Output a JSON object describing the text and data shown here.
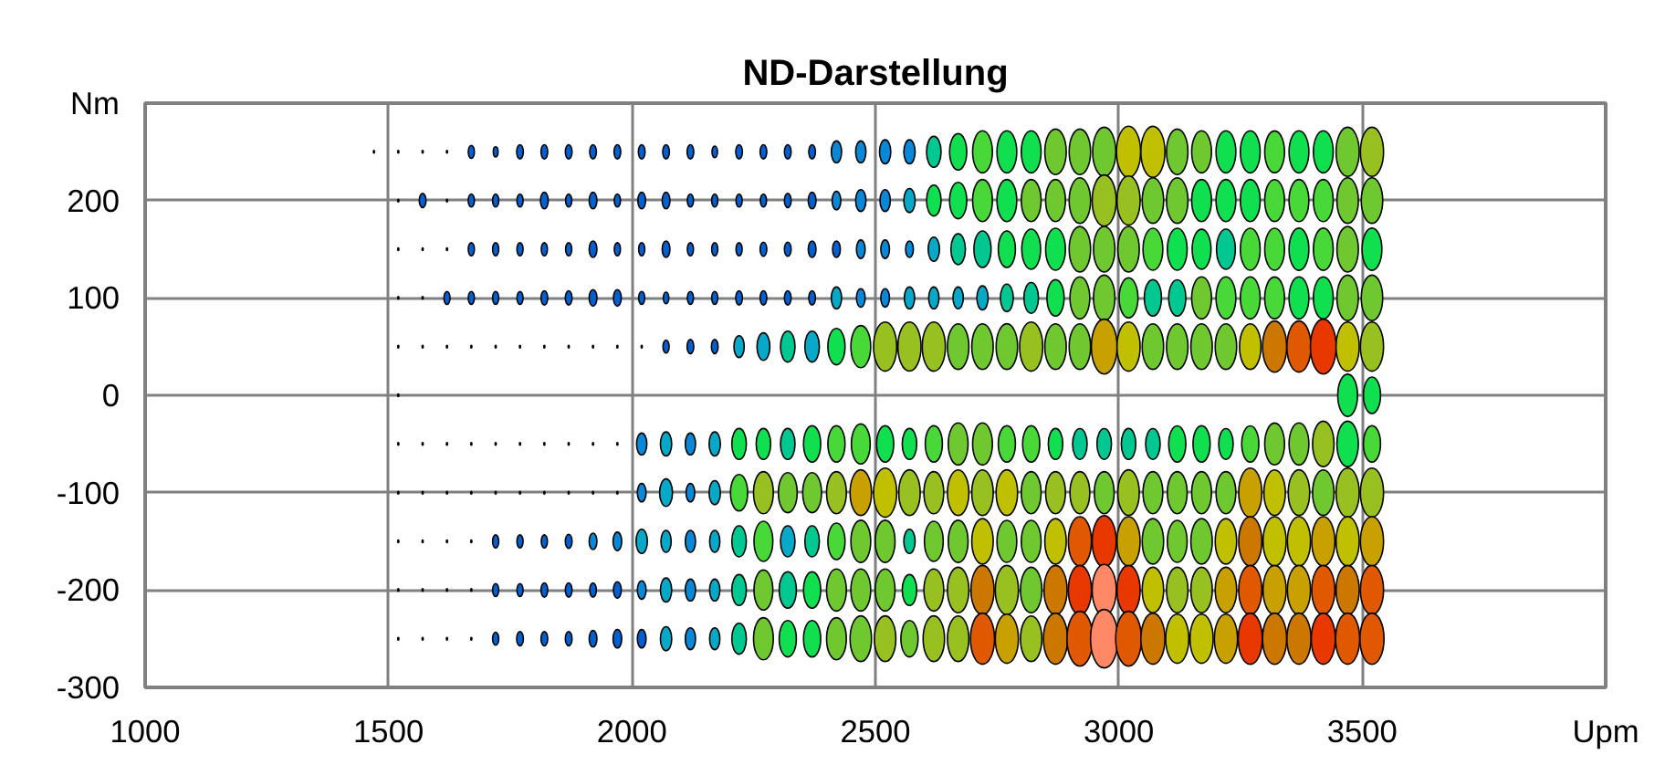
{
  "chart_data": {
    "type": "bubble",
    "title": "ND-Darstellung",
    "xlim": [
      1000,
      4000
    ],
    "xticks": [
      1000,
      1500,
      2000,
      2500,
      3000,
      3500,
      {
        "value": 4000,
        "label": "Upm"
      }
    ],
    "ylim": [
      -300,
      300
    ],
    "yticks": [
      -300,
      -200,
      -100,
      0,
      100,
      200,
      {
        "value": 300,
        "label": "Nm"
      }
    ],
    "grid": true,
    "x": [
      1520,
      1570,
      1620,
      1670,
      1720,
      1770,
      1820,
      1870,
      1920,
      1970,
      2020,
      2070,
      2120,
      2170,
      2220,
      2270,
      2320,
      2370,
      2420,
      2470,
      2520,
      2570,
      2620,
      2670,
      2720,
      2770,
      2820,
      2870,
      2920,
      2970,
      3020,
      3070,
      3120,
      3170,
      3220,
      3270,
      3320,
      3370,
      3420,
      3470,
      3520
    ],
    "series": [
      {
        "x": [
          1470,
          1520,
          1570,
          1620,
          1670,
          1720,
          1770,
          1820,
          1870,
          1920,
          1970,
          2020,
          2070,
          2120,
          2170,
          2220,
          2270,
          2320,
          2370,
          2420,
          2470,
          2520,
          2570,
          2620,
          2670,
          2720,
          2770,
          2820,
          2870,
          2920,
          2970,
          3020,
          3070,
          3120,
          3170,
          3220,
          3270,
          3320,
          3370,
          3420,
          3470,
          3520
        ],
        "values": [
          250,
          250,
          250,
          250,
          250,
          250,
          250,
          250,
          250,
          250,
          250,
          250,
          250,
          250,
          250,
          250,
          250,
          250,
          250,
          250,
          250,
          250,
          250,
          250,
          250,
          250,
          250,
          250,
          250,
          250,
          250,
          250,
          250,
          250,
          250,
          250,
          250,
          250,
          250,
          250,
          250,
          250
        ],
        "sizes": [
          0.002,
          0.002,
          0.002,
          0.002,
          0.05,
          0.03,
          0.06,
          0.06,
          0.06,
          0.06,
          0.06,
          0.06,
          0.06,
          0.06,
          0.04,
          0.06,
          0.06,
          0.06,
          0.06,
          0.14,
          0.14,
          0.17,
          0.17,
          0.28,
          0.39,
          0.52,
          0.52,
          0.52,
          0.61,
          0.61,
          0.71,
          0.77,
          0.77,
          0.61,
          0.52,
          0.52,
          0.52,
          0.52,
          0.52,
          0.52,
          0.71,
          0.71
        ],
        "colors": [
          "#000000",
          "#000000",
          "#000000",
          "#000000",
          "#0060d0",
          "#0060d0",
          "#0060d0",
          "#0060d0",
          "#0060d0",
          "#0060d0",
          "#0060d0",
          "#0060d0",
          "#0060d0",
          "#0060d0",
          "#0060d0",
          "#0060d0",
          "#0060d0",
          "#0060d0",
          "#0060d0",
          "#0a88d8",
          "#0a88d8",
          "#0a88d8",
          "#0a88d8",
          "#00c890",
          "#10e050",
          "#48d838",
          "#10e050",
          "#10e050",
          "#70c830",
          "#70c830",
          "#70c830",
          "#c0c000",
          "#c0c000",
          "#70c830",
          "#70c830",
          "#10e050",
          "#10e050",
          "#48d838",
          "#10e050",
          "#10e050",
          "#70c830",
          "#98c020"
        ]
      },
      {
        "values": [
          200,
          200,
          200,
          200,
          200,
          200,
          200,
          200,
          200,
          200,
          200,
          200,
          200,
          200,
          200,
          200,
          200,
          200,
          200,
          200,
          200,
          200,
          200,
          200,
          200,
          200,
          200,
          200,
          200,
          200,
          200,
          200,
          200,
          200,
          200,
          200,
          200,
          200,
          200,
          200,
          200
        ],
        "sizes": [
          0.002,
          0.06,
          0.002,
          0.05,
          0.05,
          0.05,
          0.08,
          0.05,
          0.08,
          0.05,
          0.08,
          0.08,
          0.05,
          0.05,
          0.05,
          0.05,
          0.06,
          0.08,
          0.1,
          0.14,
          0.14,
          0.17,
          0.28,
          0.39,
          0.52,
          0.52,
          0.52,
          0.52,
          0.61,
          0.77,
          0.71,
          0.61,
          0.61,
          0.52,
          0.52,
          0.52,
          0.52,
          0.52,
          0.52,
          0.61,
          0.61
        ],
        "colors": [
          "#000000",
          "#0060d0",
          "#000000",
          "#0060d0",
          "#0060d0",
          "#0060d0",
          "#0060d0",
          "#0060d0",
          "#0060d0",
          "#0060d0",
          "#0060d0",
          "#0060d0",
          "#0060d0",
          "#0060d0",
          "#0060d0",
          "#0060d0",
          "#0060d0",
          "#0060d0",
          "#0a88d8",
          "#0a88d8",
          "#0a88d8",
          "#08a8c8",
          "#10e050",
          "#10e050",
          "#48d838",
          "#10e050",
          "#70c830",
          "#70c830",
          "#70c830",
          "#98c020",
          "#98c020",
          "#70c830",
          "#70c830",
          "#10e050",
          "#10e050",
          "#10e050",
          "#48d838",
          "#48d838",
          "#48d838",
          "#70c830",
          "#70c830"
        ]
      },
      {
        "values": [
          150,
          150,
          150,
          150,
          150,
          150,
          150,
          150,
          150,
          150,
          150,
          150,
          150,
          150,
          150,
          150,
          150,
          150,
          150,
          150,
          150,
          150,
          150,
          150,
          150,
          150,
          150,
          150,
          150,
          150,
          150,
          150,
          150,
          150,
          150,
          150,
          150,
          150,
          150,
          150,
          150
        ],
        "sizes": [
          0.002,
          0.002,
          0.002,
          0.05,
          0.05,
          0.05,
          0.05,
          0.05,
          0.08,
          0.05,
          0.05,
          0.08,
          0.05,
          0.05,
          0.05,
          0.06,
          0.06,
          0.08,
          0.08,
          0.1,
          0.1,
          0.08,
          0.17,
          0.28,
          0.39,
          0.39,
          0.47,
          0.52,
          0.61,
          0.61,
          0.61,
          0.52,
          0.52,
          0.47,
          0.47,
          0.52,
          0.52,
          0.52,
          0.52,
          0.61,
          0.52
        ],
        "colors": [
          "#000000",
          "#000000",
          "#000000",
          "#0060d0",
          "#0060d0",
          "#0060d0",
          "#0060d0",
          "#0060d0",
          "#0060d0",
          "#0060d0",
          "#0060d0",
          "#0060d0",
          "#0060d0",
          "#0060d0",
          "#0060d0",
          "#0060d0",
          "#0060d0",
          "#0060d0",
          "#0060d0",
          "#0a88d8",
          "#0a88d8",
          "#0a88d8",
          "#08a8c8",
          "#00c890",
          "#00c890",
          "#10e050",
          "#10e050",
          "#10e050",
          "#70c830",
          "#70c830",
          "#70c830",
          "#48d838",
          "#10e050",
          "#10e050",
          "#00c890",
          "#48d838",
          "#48d838",
          "#10e050",
          "#48d838",
          "#70c830",
          "#10e050"
        ]
      },
      {
        "values": [
          100,
          100,
          100,
          100,
          100,
          100,
          100,
          100,
          100,
          100,
          100,
          100,
          100,
          100,
          100,
          100,
          100,
          100,
          100,
          100,
          100,
          100,
          100,
          100,
          100,
          100,
          100,
          100,
          100,
          100,
          100,
          100,
          100,
          100,
          100,
          100,
          100,
          100,
          100,
          100,
          100
        ],
        "sizes": [
          0.002,
          0.002,
          0.05,
          0.05,
          0.05,
          0.05,
          0.06,
          0.06,
          0.08,
          0.08,
          0.05,
          0.04,
          0.05,
          0.05,
          0.06,
          0.06,
          0.06,
          0.06,
          0.14,
          0.1,
          0.1,
          0.14,
          0.14,
          0.14,
          0.17,
          0.22,
          0.28,
          0.39,
          0.52,
          0.61,
          0.47,
          0.39,
          0.39,
          0.52,
          0.52,
          0.52,
          0.52,
          0.52,
          0.52,
          0.61,
          0.61
        ],
        "colors": [
          "#000000",
          "#000000",
          "#0060d0",
          "#0060d0",
          "#0060d0",
          "#0060d0",
          "#0060d0",
          "#0060d0",
          "#0060d0",
          "#0060d0",
          "#0060d0",
          "#0060d0",
          "#0060d0",
          "#0060d0",
          "#0060d0",
          "#0060d0",
          "#0060d0",
          "#0060d0",
          "#08a8c8",
          "#0a88d8",
          "#0a88d8",
          "#08a8c8",
          "#08a8c8",
          "#08a8c8",
          "#08a8c8",
          "#00c890",
          "#00c890",
          "#10e050",
          "#70c830",
          "#70c830",
          "#48d838",
          "#00c890",
          "#00c890",
          "#70c830",
          "#48d838",
          "#48d838",
          "#48d838",
          "#10e050",
          "#10e050",
          "#70c830",
          "#70c830"
        ]
      },
      {
        "values": [
          50,
          50,
          50,
          50,
          50,
          50,
          50,
          50,
          50,
          50,
          50,
          50,
          50,
          50,
          50,
          50,
          50,
          50,
          50,
          50,
          50,
          50,
          50,
          50,
          50,
          50,
          50,
          50,
          50,
          50,
          50,
          50,
          50,
          50,
          50,
          50,
          50,
          50,
          50,
          50,
          50
        ],
        "sizes": [
          0.002,
          0.002,
          0.002,
          0.002,
          0.002,
          0.002,
          0.002,
          0.002,
          0.002,
          0.002,
          0.002,
          0.05,
          0.06,
          0.06,
          0.14,
          0.22,
          0.28,
          0.28,
          0.39,
          0.52,
          0.71,
          0.71,
          0.71,
          0.61,
          0.61,
          0.61,
          0.71,
          0.61,
          0.61,
          0.88,
          0.71,
          0.61,
          0.61,
          0.61,
          0.61,
          0.61,
          0.77,
          0.77,
          0.88,
          0.71,
          0.71
        ],
        "colors": [
          "#000000",
          "#000000",
          "#000000",
          "#000000",
          "#000000",
          "#000000",
          "#000000",
          "#000000",
          "#000000",
          "#000000",
          "#000000",
          "#0060d0",
          "#0060d0",
          "#0060d0",
          "#08a8c8",
          "#08a8c8",
          "#00c890",
          "#08a8c8",
          "#10e050",
          "#48d838",
          "#98c020",
          "#98c020",
          "#98c020",
          "#70c830",
          "#70c830",
          "#70c830",
          "#98c020",
          "#70c830",
          "#70c830",
          "#c8a000",
          "#c0c000",
          "#70c830",
          "#70c830",
          "#70c830",
          "#70c830",
          "#c0c000",
          "#cc7800",
          "#e05800",
          "#e83800",
          "#c0c000",
          "#98c020"
        ]
      },
      {
        "x": [
          1520,
          3470,
          3520
        ],
        "values": [
          0,
          0,
          0
        ],
        "sizes": [
          0.002,
          0.52,
          0.39
        ],
        "colors": [
          "#000000",
          "#10e050",
          "#10e050"
        ]
      },
      {
        "values": [
          -50,
          -50,
          -50,
          -50,
          -50,
          -50,
          -50,
          -50,
          -50,
          -50,
          -50,
          -50,
          -50,
          -50,
          -50,
          -50,
          -50,
          -50,
          -50,
          -50,
          -50,
          -50,
          -50,
          -50,
          -50,
          -50,
          -50,
          -50,
          -50,
          -50,
          -50,
          -50,
          -50,
          -50,
          -50,
          -50,
          -50,
          -50,
          -50,
          -50,
          -50
        ],
        "sizes": [
          0.002,
          0.002,
          0.002,
          0.002,
          0.002,
          0.002,
          0.002,
          0.002,
          0.002,
          0.002,
          0.14,
          0.17,
          0.14,
          0.17,
          0.28,
          0.28,
          0.28,
          0.39,
          0.39,
          0.47,
          0.39,
          0.28,
          0.39,
          0.52,
          0.52,
          0.39,
          0.39,
          0.28,
          0.28,
          0.28,
          0.28,
          0.28,
          0.39,
          0.39,
          0.28,
          0.39,
          0.52,
          0.52,
          0.61,
          0.61,
          0.39
        ],
        "colors": [
          "#000000",
          "#000000",
          "#000000",
          "#000000",
          "#000000",
          "#000000",
          "#000000",
          "#000000",
          "#000000",
          "#000000",
          "#0a88d8",
          "#08a8c8",
          "#0a88d8",
          "#08a8c8",
          "#10e050",
          "#10e050",
          "#00c890",
          "#10e050",
          "#48d838",
          "#48d838",
          "#10e050",
          "#10e050",
          "#48d838",
          "#70c830",
          "#70c830",
          "#48d838",
          "#48d838",
          "#10e050",
          "#00c890",
          "#00c890",
          "#00c890",
          "#00c890",
          "#10e050",
          "#10e050",
          "#10e050",
          "#48d838",
          "#70c830",
          "#70c830",
          "#98c020",
          "#10e050",
          "#48d838"
        ]
      },
      {
        "values": [
          -100,
          -100,
          -100,
          -100,
          -100,
          -100,
          -100,
          -100,
          -100,
          -100,
          -100,
          -100,
          -100,
          -100,
          -100,
          -100,
          -100,
          -100,
          -100,
          -100,
          -100,
          -100,
          -100,
          -100,
          -100,
          -100,
          -100,
          -100,
          -100,
          -100,
          -100,
          -100,
          -100,
          -100,
          -100,
          -100,
          -100,
          -100,
          -100,
          -100,
          -100
        ],
        "sizes": [
          0.002,
          0.002,
          0.002,
          0.002,
          0.002,
          0.002,
          0.002,
          0.002,
          0.002,
          0.002,
          0.1,
          0.22,
          0.1,
          0.17,
          0.39,
          0.52,
          0.47,
          0.47,
          0.52,
          0.61,
          0.71,
          0.61,
          0.52,
          0.61,
          0.61,
          0.61,
          0.52,
          0.52,
          0.52,
          0.52,
          0.61,
          0.52,
          0.52,
          0.52,
          0.52,
          0.71,
          0.61,
          0.61,
          0.61,
          0.71,
          0.71
        ],
        "colors": [
          "#000000",
          "#000000",
          "#000000",
          "#000000",
          "#000000",
          "#000000",
          "#000000",
          "#000000",
          "#000000",
          "#000000",
          "#0a88d8",
          "#08a8c8",
          "#0a88d8",
          "#08a8c8",
          "#48d838",
          "#98c020",
          "#70c830",
          "#70c830",
          "#98c020",
          "#c8a000",
          "#c0c000",
          "#98c020",
          "#98c020",
          "#c0c000",
          "#98c020",
          "#c0c000",
          "#70c830",
          "#98c020",
          "#98c020",
          "#70c830",
          "#98c020",
          "#70c830",
          "#70c830",
          "#70c830",
          "#70c830",
          "#c8a000",
          "#c0c000",
          "#98c020",
          "#70c830",
          "#98c020",
          "#98c020"
        ]
      },
      {
        "values": [
          -150,
          -150,
          -150,
          -150,
          -150,
          -150,
          -150,
          -150,
          -150,
          -150,
          -150,
          -150,
          -150,
          -150,
          -150,
          -150,
          -150,
          -150,
          -150,
          -150,
          -150,
          -150,
          -150,
          -150,
          -150,
          -150,
          -150,
          -150,
          -150,
          -150,
          -150,
          -150,
          -150,
          -150,
          -150,
          -150,
          -150,
          -150,
          -150,
          -150,
          -150
        ],
        "sizes": [
          0.002,
          0.002,
          0.002,
          0.002,
          0.05,
          0.05,
          0.05,
          0.06,
          0.08,
          0.1,
          0.17,
          0.14,
          0.14,
          0.14,
          0.28,
          0.47,
          0.28,
          0.28,
          0.39,
          0.52,
          0.52,
          0.17,
          0.47,
          0.52,
          0.61,
          0.52,
          0.52,
          0.61,
          0.71,
          0.77,
          0.71,
          0.61,
          0.52,
          0.61,
          0.61,
          0.71,
          0.71,
          0.71,
          0.71,
          0.71,
          0.71
        ],
        "colors": [
          "#000000",
          "#000000",
          "#000000",
          "#000000",
          "#0060d0",
          "#0060d0",
          "#0060d0",
          "#0060d0",
          "#0a88d8",
          "#0a88d8",
          "#08a8c8",
          "#08a8c8",
          "#0a88d8",
          "#08a8c8",
          "#00c890",
          "#48d838",
          "#08a8c8",
          "#00c890",
          "#48d838",
          "#70c830",
          "#70c830",
          "#00c890",
          "#70c830",
          "#70c830",
          "#c0c000",
          "#70c830",
          "#70c830",
          "#c0c000",
          "#e05800",
          "#e83800",
          "#c8a000",
          "#70c830",
          "#70c830",
          "#70c830",
          "#c0c000",
          "#cc7800",
          "#c0c000",
          "#c0c000",
          "#c8a000",
          "#c0c000",
          "#c8a000"
        ]
      },
      {
        "values": [
          -200,
          -200,
          -200,
          -200,
          -200,
          -200,
          -200,
          -200,
          -200,
          -200,
          -200,
          -200,
          -200,
          -200,
          -200,
          -200,
          -200,
          -200,
          -200,
          -200,
          -200,
          -200,
          -200,
          -200,
          -200,
          -200,
          -200,
          -200,
          -200,
          -200,
          -200,
          -200,
          -200,
          -200,
          -200,
          -200,
          -200,
          -200,
          -200,
          -200,
          -200
        ],
        "sizes": [
          0.002,
          0.002,
          0.002,
          0.002,
          0.05,
          0.05,
          0.06,
          0.06,
          0.06,
          0.08,
          0.1,
          0.17,
          0.14,
          0.14,
          0.28,
          0.47,
          0.39,
          0.39,
          0.52,
          0.52,
          0.52,
          0.28,
          0.52,
          0.61,
          0.71,
          0.71,
          0.61,
          0.71,
          0.71,
          0.77,
          0.71,
          0.61,
          0.61,
          0.61,
          0.61,
          0.71,
          0.71,
          0.71,
          0.71,
          0.71,
          0.71
        ],
        "colors": [
          "#000000",
          "#000000",
          "#000000",
          "#000000",
          "#0060d0",
          "#0060d0",
          "#0060d0",
          "#0060d0",
          "#0060d0",
          "#0060d0",
          "#0a88d8",
          "#08a8c8",
          "#0a88d8",
          "#08a8c8",
          "#00c890",
          "#70c830",
          "#00c890",
          "#10e050",
          "#70c830",
          "#70c830",
          "#70c830",
          "#10e050",
          "#98c020",
          "#98c020",
          "#cc7800",
          "#98c020",
          "#70c830",
          "#cc7800",
          "#e83800",
          "#ff8866",
          "#e83800",
          "#c0c000",
          "#98c020",
          "#98c020",
          "#c8a000",
          "#e05800",
          "#c8a000",
          "#c8a000",
          "#e05800",
          "#cc7800",
          "#e05800"
        ]
      },
      {
        "values": [
          -250,
          -250,
          -250,
          -250,
          -250,
          -250,
          -250,
          -250,
          -250,
          -250,
          -250,
          -250,
          -250,
          -250,
          -250,
          -250,
          -250,
          -250,
          -250,
          -250,
          -250,
          -250,
          -250,
          -250,
          -250,
          -250,
          -250,
          -250,
          -250,
          -250,
          -250,
          -250,
          -250,
          -250,
          -250,
          -250,
          -250,
          -250,
          -250,
          -250,
          -250
        ],
        "sizes": [
          0.002,
          0.002,
          0.002,
          0.002,
          0.05,
          0.06,
          0.06,
          0.06,
          0.08,
          0.1,
          0.1,
          0.17,
          0.14,
          0.14,
          0.28,
          0.52,
          0.39,
          0.39,
          0.52,
          0.61,
          0.61,
          0.39,
          0.61,
          0.61,
          0.77,
          0.71,
          0.61,
          0.77,
          0.88,
          1,
          0.88,
          0.77,
          0.71,
          0.71,
          0.71,
          0.77,
          0.77,
          0.77,
          0.77,
          0.77,
          0.77
        ],
        "colors": [
          "#000000",
          "#000000",
          "#000000",
          "#000000",
          "#0060d0",
          "#0060d0",
          "#0060d0",
          "#0060d0",
          "#0060d0",
          "#0060d0",
          "#0060d0",
          "#08a8c8",
          "#0a88d8",
          "#08a8c8",
          "#00c890",
          "#70c830",
          "#10e050",
          "#10e050",
          "#70c830",
          "#70c830",
          "#98c020",
          "#70c830",
          "#98c020",
          "#98c020",
          "#e05800",
          "#c8a000",
          "#98c020",
          "#cc7800",
          "#e05800",
          "#ff8866",
          "#e05800",
          "#cc7800",
          "#c0c000",
          "#c0c000",
          "#c8a000",
          "#e83800",
          "#cc7800",
          "#cc7800",
          "#e83800",
          "#e05800",
          "#e05800"
        ]
      }
    ]
  }
}
